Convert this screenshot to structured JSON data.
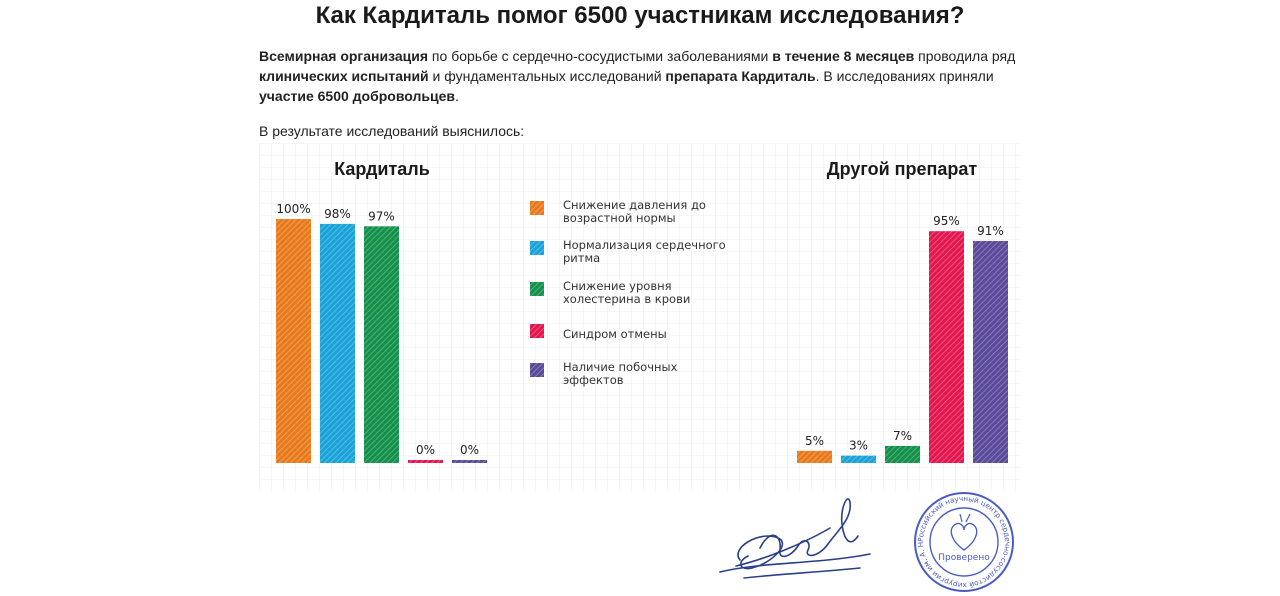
{
  "title": "Как Кардиталь помог 6500 участникам исследования?",
  "intro": {
    "segments": [
      {
        "text": "Всемирная организация",
        "bold": true
      },
      {
        "text": " по борьбе с сердечно-сосудистыми заболеваниями ",
        "bold": false
      },
      {
        "text": "в течение 8 месяцев",
        "bold": true
      },
      {
        "text": " проводила ряд ",
        "bold": false
      },
      {
        "text": "клинических испытаний",
        "bold": true
      },
      {
        "text": " и фундаментальных исследований ",
        "bold": false
      },
      {
        "text": "препарата Кардиталь",
        "bold": true
      },
      {
        "text": ". В исследованиях приняли ",
        "bold": false
      },
      {
        "text": "участие 6500 добровольцев",
        "bold": true
      },
      {
        "text": ".",
        "bold": false
      }
    ]
  },
  "result_label": "В результате исследований выяснилось:",
  "chart_data": [
    {
      "type": "bar",
      "title": "Кардиталь",
      "categories": [
        "Снижение давления до возрастной нормы",
        "Нормализация сердечного ритма",
        "Снижение уровня холестерина в крови",
        "Синдром отмены",
        "Наличие побочных эффектов"
      ],
      "values": [
        100,
        98,
        97,
        0,
        0
      ],
      "data_labels": [
        "100%",
        "98%",
        "97%",
        "0%",
        "0%"
      ],
      "ylim": [
        0,
        100
      ],
      "grid": true
    },
    {
      "type": "bar",
      "title": "Другой препарат",
      "categories": [
        "Снижение давления до возрастной нормы",
        "Нормализация сердечного ритма",
        "Снижение уровня холестерина в крови",
        "Синдром отмены",
        "Наличие побочных эффектов"
      ],
      "values": [
        5,
        3,
        7,
        95,
        91
      ],
      "data_labels": [
        "5%",
        "3%",
        "7%",
        "95%",
        "91%"
      ],
      "ylim": [
        0,
        100
      ],
      "grid": true
    }
  ],
  "legend": {
    "placement": "center",
    "items": [
      {
        "lines": [
          "Снижение давления до",
          "возрастной нормы"
        ],
        "color": "#e87a1c"
      },
      {
        "lines": [
          "Нормализация сердечного",
          "ритма"
        ],
        "color": "#1aa3d8"
      },
      {
        "lines": [
          "Снижение уровня",
          "холестерина в крови"
        ],
        "color": "#13914a"
      },
      {
        "lines": [
          "Синдром отмены"
        ],
        "color": "#e3174f"
      },
      {
        "lines": [
          "Наличие побочных",
          "эффектов"
        ],
        "color": "#5a4a9a"
      }
    ]
  },
  "stamp": {
    "ring_text": "Российский научный центр сердечно-сосудистой хирургии им. А. Н. Бакулева",
    "center_text": "Проверено"
  },
  "signature_icon": "handwritten-signature-icon",
  "stamp_icon": "heart-seal-icon"
}
